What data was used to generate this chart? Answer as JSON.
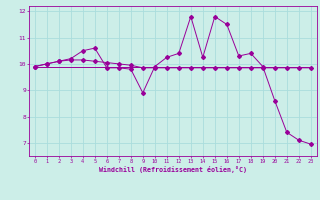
{
  "title": "",
  "xlabel": "Windchill (Refroidissement éolien,°C)",
  "ylabel": "",
  "bg_color": "#cceee8",
  "line_color": "#990099",
  "grid_color": "#aadddd",
  "series1": {
    "x": [
      0,
      1,
      2,
      3,
      4,
      5,
      6,
      7,
      8,
      9,
      10,
      11,
      12,
      13,
      14,
      15,
      16,
      17,
      18,
      19,
      20,
      21,
      22,
      23
    ],
    "y": [
      9.9,
      10.0,
      10.1,
      10.2,
      10.5,
      10.6,
      9.85,
      9.85,
      9.8,
      8.9,
      9.9,
      10.25,
      10.4,
      11.8,
      10.25,
      11.8,
      11.5,
      10.3,
      10.4,
      9.9,
      8.6,
      7.4,
      7.1,
      6.95
    ]
  },
  "series2": {
    "x": [
      0,
      1,
      2,
      3,
      4,
      5,
      6,
      7,
      8,
      9,
      10,
      11,
      12,
      13,
      14,
      15,
      16,
      17,
      18,
      19,
      20,
      21,
      22,
      23
    ],
    "y": [
      9.9,
      10.0,
      10.1,
      10.15,
      10.15,
      10.1,
      10.05,
      10.0,
      9.95,
      9.85,
      9.85,
      9.85,
      9.85,
      9.85,
      9.85,
      9.85,
      9.85,
      9.85,
      9.85,
      9.85,
      9.85,
      9.85,
      9.85,
      9.85
    ]
  },
  "series3": {
    "x": [
      0,
      23
    ],
    "y": [
      9.9,
      9.9
    ]
  },
  "ylim": [
    6.5,
    12.2
  ],
  "yticks": [
    7,
    8,
    9,
    10,
    11,
    12
  ],
  "xlim": [
    -0.5,
    23.5
  ],
  "xticks": [
    0,
    1,
    2,
    3,
    4,
    5,
    6,
    7,
    8,
    9,
    10,
    11,
    12,
    13,
    14,
    15,
    16,
    17,
    18,
    19,
    20,
    21,
    22,
    23
  ]
}
